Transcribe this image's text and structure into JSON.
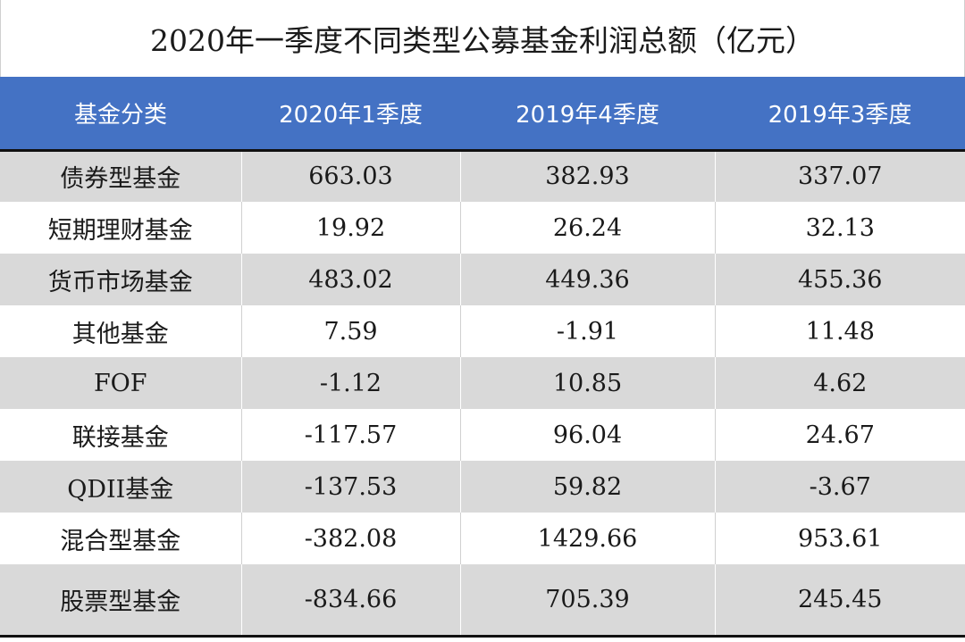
{
  "title": "2020年一季度不同类型公募基金利润总额（亿元）",
  "header": [
    "基金分类",
    "2020年1季度",
    "2019年4季度",
    "2019年3季度"
  ],
  "chart_data": {
    "type": "table",
    "title": "2020年一季度不同类型公募基金利润总额（亿元）",
    "columns": [
      "基金分类",
      "2020年1季度",
      "2019年4季度",
      "2019年3季度"
    ],
    "rows": [
      [
        "债券型基金",
        "663.03",
        "382.93",
        "337.07"
      ],
      [
        "短期理财基金",
        "19.92",
        "26.24",
        "32.13"
      ],
      [
        "货币市场基金",
        "483.02",
        "449.36",
        "455.36"
      ],
      [
        "其他基金",
        "7.59",
        "-1.91",
        "11.48"
      ],
      [
        "FOF",
        "-1.12",
        "10.85",
        "4.62"
      ],
      [
        "联接基金",
        "-117.57",
        "96.04",
        "24.67"
      ],
      [
        "QDII基金",
        "-137.53",
        "59.82",
        "-3.67"
      ],
      [
        "混合型基金",
        "-382.08",
        "1429.66",
        "953.61"
      ],
      [
        "股票型基金",
        "-834.66",
        "705.39",
        "245.45"
      ]
    ]
  },
  "colors": {
    "header_bg": "#4472c4",
    "header_text": "#ffffff",
    "band_gray": "#d9d9d9",
    "band_white": "#ffffff"
  }
}
